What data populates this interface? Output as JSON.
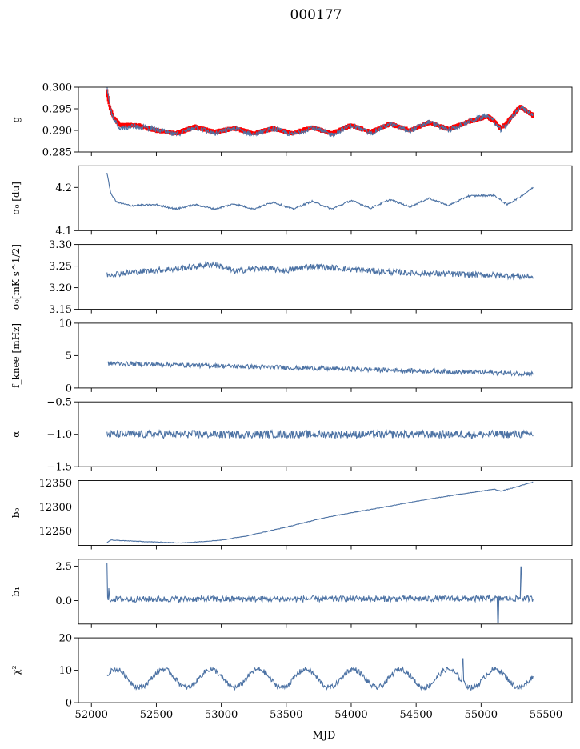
{
  "figure_title": "000177",
  "chart_data": {
    "type": "line",
    "xlabel": "MJD",
    "xlim": [
      51900,
      55700
    ],
    "xticks": [
      52000,
      52500,
      53000,
      53500,
      54000,
      54500,
      55000,
      55500
    ],
    "x_range": [
      52120,
      55400
    ],
    "colors": {
      "series": "#4c72a4",
      "overlay": "#ff0000"
    },
    "panels": [
      {
        "name": "g",
        "ylabel": "g",
        "ylim": [
          0.285,
          0.3
        ],
        "yticks": [
          0.285,
          0.29,
          0.295,
          0.3
        ],
        "tick_labels": [
          "0.285",
          "0.290",
          "0.295",
          "0.300"
        ],
        "knots_x": [
          52120,
          52140,
          52170,
          52220,
          52350,
          52500,
          52650,
          52800,
          52950,
          53100,
          53250,
          53400,
          53550,
          53700,
          53850,
          54000,
          54150,
          54300,
          54450,
          54600,
          54750,
          54900,
          55000,
          55050,
          55100,
          55150,
          55200,
          55300,
          55400
        ],
        "knots_y": [
          0.3,
          0.296,
          0.2925,
          0.2905,
          0.291,
          0.2902,
          0.289,
          0.2908,
          0.2892,
          0.2905,
          0.289,
          0.2904,
          0.289,
          0.2907,
          0.289,
          0.2912,
          0.2893,
          0.2915,
          0.2898,
          0.292,
          0.29,
          0.292,
          0.293,
          0.2935,
          0.292,
          0.29,
          0.2915,
          0.2955,
          0.2935
        ],
        "noise": 0.0006,
        "overlay_knots_y": [
          0.299,
          0.2955,
          0.293,
          0.2912,
          0.2912,
          0.29,
          0.2893,
          0.2908,
          0.2896,
          0.2905,
          0.2893,
          0.2904,
          0.2893,
          0.2907,
          0.2893,
          0.2912,
          0.2896,
          0.2915,
          0.29,
          0.2918,
          0.2903,
          0.292,
          0.2928,
          0.2932,
          0.2922,
          0.2905,
          0.2918,
          0.2955,
          0.2935
        ],
        "overlay_band": 0.0012
      },
      {
        "name": "sigma0-du",
        "ylabel": "σ₀ [du]",
        "ylim": [
          4.1,
          4.25
        ],
        "yticks": [
          4.1,
          4.2
        ],
        "tick_labels": [
          "4.1",
          "4.2"
        ],
        "knots_x": [
          52120,
          52150,
          52200,
          52300,
          52500,
          52650,
          52800,
          52950,
          53100,
          53250,
          53400,
          53550,
          53700,
          53850,
          54000,
          54150,
          54300,
          54450,
          54600,
          54750,
          54900,
          55100,
          55200,
          55300,
          55400
        ],
        "knots_y": [
          4.235,
          4.185,
          4.165,
          4.158,
          4.16,
          4.15,
          4.16,
          4.15,
          4.162,
          4.15,
          4.166,
          4.15,
          4.168,
          4.15,
          4.17,
          4.152,
          4.172,
          4.155,
          4.175,
          4.158,
          4.18,
          4.182,
          4.16,
          4.178,
          4.2
        ],
        "noise": 0.002
      },
      {
        "name": "sigma0-mk",
        "ylabel": "σ₀[mK s^1/2]",
        "ylim": [
          3.15,
          3.3
        ],
        "yticks": [
          3.15,
          3.2,
          3.25,
          3.3
        ],
        "tick_labels": [
          "3.15",
          "3.20",
          "3.25",
          "3.30"
        ],
        "knots_x": [
          52120,
          52400,
          52700,
          52950,
          53100,
          53300,
          53500,
          53700,
          53900,
          54100,
          54400,
          54700,
          55000,
          55200,
          55400
        ],
        "knots_y": [
          3.23,
          3.238,
          3.245,
          3.255,
          3.238,
          3.245,
          3.24,
          3.25,
          3.245,
          3.24,
          3.235,
          3.232,
          3.23,
          3.228,
          3.225
        ],
        "noise": 0.007
      },
      {
        "name": "fknee",
        "ylabel": "f_knee [mHz]",
        "ylim": [
          0,
          10
        ],
        "yticks": [
          0,
          5,
          10
        ],
        "tick_labels": [
          "0",
          "5",
          "10"
        ],
        "knots_x": [
          52120,
          52600,
          53000,
          53400,
          53800,
          54200,
          54600,
          55000,
          55400
        ],
        "knots_y": [
          3.8,
          3.6,
          3.4,
          3.2,
          3.0,
          2.8,
          2.6,
          2.4,
          2.2
        ],
        "noise": 0.35
      },
      {
        "name": "alpha",
        "ylabel": "α",
        "ylim": [
          -1.5,
          -0.5
        ],
        "yticks": [
          -1.5,
          -1.0,
          -0.5
        ],
        "tick_labels": [
          "−1.5",
          "−1.0",
          "−0.5"
        ],
        "knots_x": [
          52120,
          55400
        ],
        "knots_y": [
          -1.0,
          -1.0
        ],
        "noise": 0.06
      },
      {
        "name": "b0",
        "ylabel": "b₀",
        "ylim": [
          12220,
          12355
        ],
        "yticks": [
          12250,
          12300,
          12350
        ],
        "tick_labels": [
          "12250",
          "12300",
          "12350"
        ],
        "knots_x": [
          52120,
          52150,
          52400,
          52700,
          53000,
          53200,
          53500,
          53800,
          54000,
          54300,
          54500,
          54800,
          55000,
          55100,
          55150,
          55250,
          55400
        ],
        "knots_y": [
          12226,
          12231,
          12228,
          12225,
          12231,
          12240,
          12258,
          12278,
          12288,
          12302,
          12312,
          12325,
          12333,
          12337,
          12333,
          12340,
          12352
        ],
        "noise": 0.6
      },
      {
        "name": "b1",
        "ylabel": "b₁",
        "ylim": [
          -1.7,
          3.0
        ],
        "yticks": [
          0.0,
          2.5
        ],
        "tick_labels": [
          "0.0",
          "2.5"
        ],
        "knots_x": [
          52120,
          55400
        ],
        "knots_y": [
          0.1,
          0.15
        ],
        "noise": 0.22
      },
      {
        "name": "chi2",
        "ylabel": "χ²",
        "ylim": [
          0,
          20
        ],
        "yticks": [
          0,
          10,
          20
        ],
        "tick_labels": [
          "0",
          "10",
          "20"
        ],
        "knots_x": [
          52120,
          55400
        ],
        "knots_y": [
          7.5,
          7.5
        ],
        "noise": 0.8
      }
    ]
  }
}
